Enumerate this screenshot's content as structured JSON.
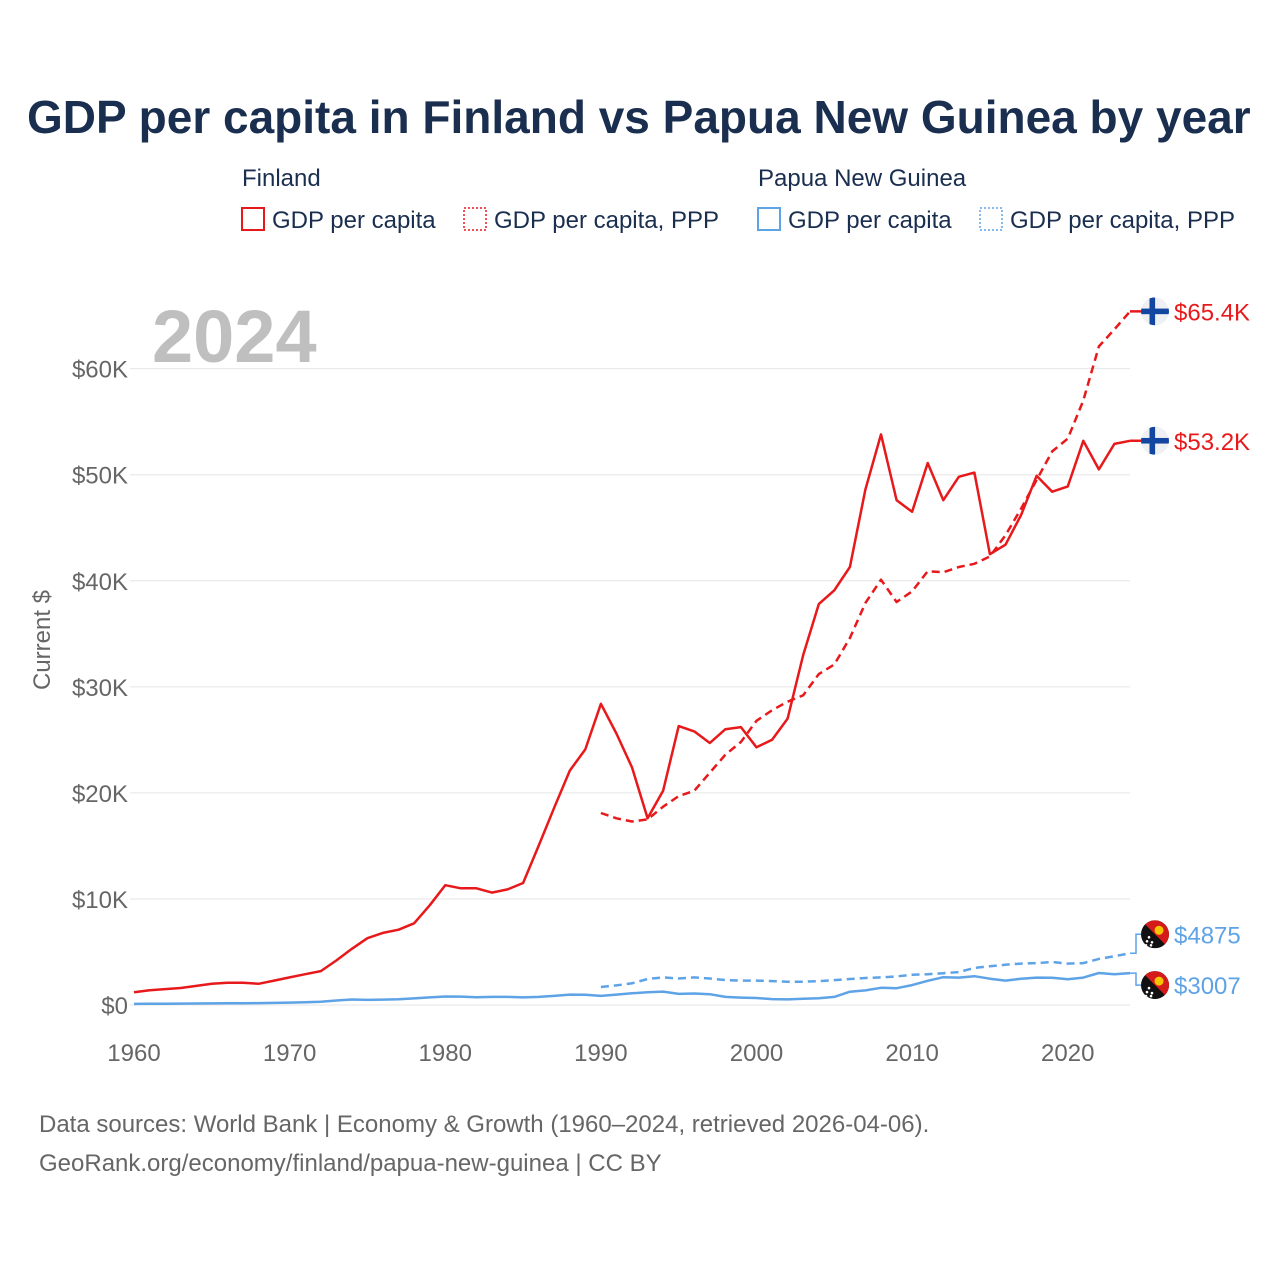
{
  "chart_data": {
    "type": "line",
    "title": "GDP per capita in Finland vs Papua New Guinea by year",
    "year_label": "2024",
    "ylabel": "Current $",
    "xlabel": "",
    "xlim": [
      1960,
      2024
    ],
    "ylim": [
      0,
      66000
    ],
    "x_ticks": [
      1960,
      1970,
      1980,
      1990,
      2000,
      2010,
      2020
    ],
    "x_tick_labels": [
      "1960",
      "1970",
      "1980",
      "1990",
      "2000",
      "2010",
      "2020"
    ],
    "y_ticks": [
      0,
      10000,
      20000,
      30000,
      40000,
      50000,
      60000
    ],
    "y_tick_labels": [
      "$0",
      "$10K",
      "$20K",
      "$30K",
      "$40K",
      "$50K",
      "$60K"
    ],
    "grid": true,
    "legend": {
      "groups": [
        {
          "country": "Finland",
          "items": [
            "GDP per capita",
            "GDP per capita, PPP"
          ]
        },
        {
          "country": "Papua New Guinea",
          "items": [
            "GDP per capita",
            "GDP per capita, PPP"
          ]
        }
      ],
      "placement": "top"
    },
    "colors": {
      "finland": "#e8191b",
      "png": "#5ea3e6",
      "grid": "#e6e6e6",
      "axis_text": "#666666",
      "title": "#1a2e4f",
      "year": "#bfbfbf"
    },
    "series": [
      {
        "name": "Finland GDP per capita",
        "country": "Finland",
        "style": "solid",
        "end_label": "$53.2K",
        "x": [
          1960,
          1961,
          1962,
          1963,
          1964,
          1965,
          1966,
          1967,
          1968,
          1969,
          1970,
          1971,
          1972,
          1973,
          1974,
          1975,
          1976,
          1977,
          1978,
          1979,
          1980,
          1981,
          1982,
          1983,
          1984,
          1985,
          1986,
          1987,
          1988,
          1989,
          1990,
          1991,
          1992,
          1993,
          1994,
          1995,
          1996,
          1997,
          1998,
          1999,
          2000,
          2001,
          2002,
          2003,
          2004,
          2005,
          2006,
          2007,
          2008,
          2009,
          2010,
          2011,
          2012,
          2013,
          2014,
          2015,
          2016,
          2017,
          2018,
          2019,
          2020,
          2021,
          2022,
          2023,
          2024
        ],
        "values": [
          1200,
          1400,
          1500,
          1600,
          1800,
          2000,
          2100,
          2100,
          2000,
          2300,
          2600,
          2900,
          3200,
          4200,
          5300,
          6300,
          6800,
          7100,
          7700,
          9400,
          11300,
          11000,
          11000,
          10600,
          10900,
          11500,
          15000,
          18600,
          22100,
          24100,
          28400,
          25600,
          22400,
          17600,
          20200,
          26300,
          25800,
          24700,
          26000,
          26200,
          24300,
          25000,
          27000,
          33000,
          37800,
          39100,
          41300,
          48600,
          53800,
          47600,
          46500,
          51100,
          47600,
          49800,
          50200,
          42500,
          43400,
          46200,
          49900,
          48400,
          48900,
          53200,
          50500,
          52900,
          53200
        ]
      },
      {
        "name": "Finland GDP per capita, PPP",
        "country": "Finland",
        "style": "dashed",
        "end_label": "$65.4K",
        "x": [
          1990,
          1991,
          1992,
          1993,
          1994,
          1995,
          1996,
          1997,
          1998,
          1999,
          2000,
          2001,
          2002,
          2003,
          2004,
          2005,
          2006,
          2007,
          2008,
          2009,
          2010,
          2011,
          2012,
          2013,
          2014,
          2015,
          2016,
          2017,
          2018,
          2019,
          2020,
          2021,
          2022,
          2023,
          2024
        ],
        "values": [
          18100,
          17600,
          17300,
          17500,
          18700,
          19700,
          20200,
          21900,
          23600,
          24800,
          26800,
          27800,
          28600,
          29200,
          31200,
          32100,
          34600,
          37900,
          40100,
          38000,
          39000,
          40900,
          40800,
          41300,
          41600,
          42300,
          44300,
          46800,
          49500,
          52200,
          53400,
          57000,
          62100,
          63700,
          65400
        ]
      },
      {
        "name": "Papua New Guinea GDP per capita",
        "country": "Papua New Guinea",
        "style": "solid",
        "end_label": "$3007",
        "x": [
          1960,
          1961,
          1962,
          1963,
          1964,
          1965,
          1966,
          1967,
          1968,
          1969,
          1970,
          1971,
          1972,
          1973,
          1974,
          1975,
          1976,
          1977,
          1978,
          1979,
          1980,
          1981,
          1982,
          1983,
          1984,
          1985,
          1986,
          1987,
          1988,
          1989,
          1990,
          1991,
          1992,
          1993,
          1994,
          1995,
          1996,
          1997,
          1998,
          1999,
          2000,
          2001,
          2002,
          2003,
          2004,
          2005,
          2006,
          2007,
          2008,
          2009,
          2010,
          2011,
          2012,
          2013,
          2014,
          2015,
          2016,
          2017,
          2018,
          2019,
          2020,
          2021,
          2022,
          2023,
          2024
        ],
        "values": [
          100,
          110,
          120,
          130,
          140,
          150,
          160,
          170,
          180,
          200,
          230,
          260,
          300,
          420,
          520,
          480,
          510,
          540,
          620,
          720,
          800,
          790,
          740,
          760,
          760,
          720,
          760,
          860,
          980,
          960,
          860,
          980,
          1100,
          1200,
          1260,
          1050,
          1080,
          1020,
          760,
          700,
          660,
          560,
          530,
          590,
          640,
          760,
          1250,
          1380,
          1620,
          1580,
          1880,
          2280,
          2620,
          2580,
          2720,
          2480,
          2300,
          2480,
          2580,
          2560,
          2430,
          2580,
          3020,
          2900,
          3007
        ]
      },
      {
        "name": "Papua New Guinea GDP per capita, PPP",
        "country": "Papua New Guinea",
        "style": "dashed",
        "end_label": "$4875",
        "x": [
          1990,
          1991,
          1992,
          1993,
          1994,
          1995,
          1996,
          1997,
          1998,
          1999,
          2000,
          2001,
          2002,
          2003,
          2004,
          2005,
          2006,
          2007,
          2008,
          2009,
          2010,
          2011,
          2012,
          2013,
          2014,
          2015,
          2016,
          2017,
          2018,
          2019,
          2020,
          2021,
          2022,
          2023,
          2024
        ],
        "values": [
          1700,
          1850,
          2050,
          2450,
          2600,
          2500,
          2600,
          2500,
          2350,
          2300,
          2300,
          2250,
          2200,
          2200,
          2250,
          2350,
          2450,
          2550,
          2600,
          2700,
          2850,
          2900,
          3000,
          3100,
          3500,
          3650,
          3800,
          3900,
          3950,
          4050,
          3900,
          3950,
          4350,
          4600,
          4875
        ]
      }
    ]
  },
  "footer": {
    "sources": "Data sources: World Bank | Economy & Growth (1960–2024, retrieved 2026-04-06).",
    "site": "GeoRank.org/economy/finland/papua-new-guinea | CC BY"
  }
}
